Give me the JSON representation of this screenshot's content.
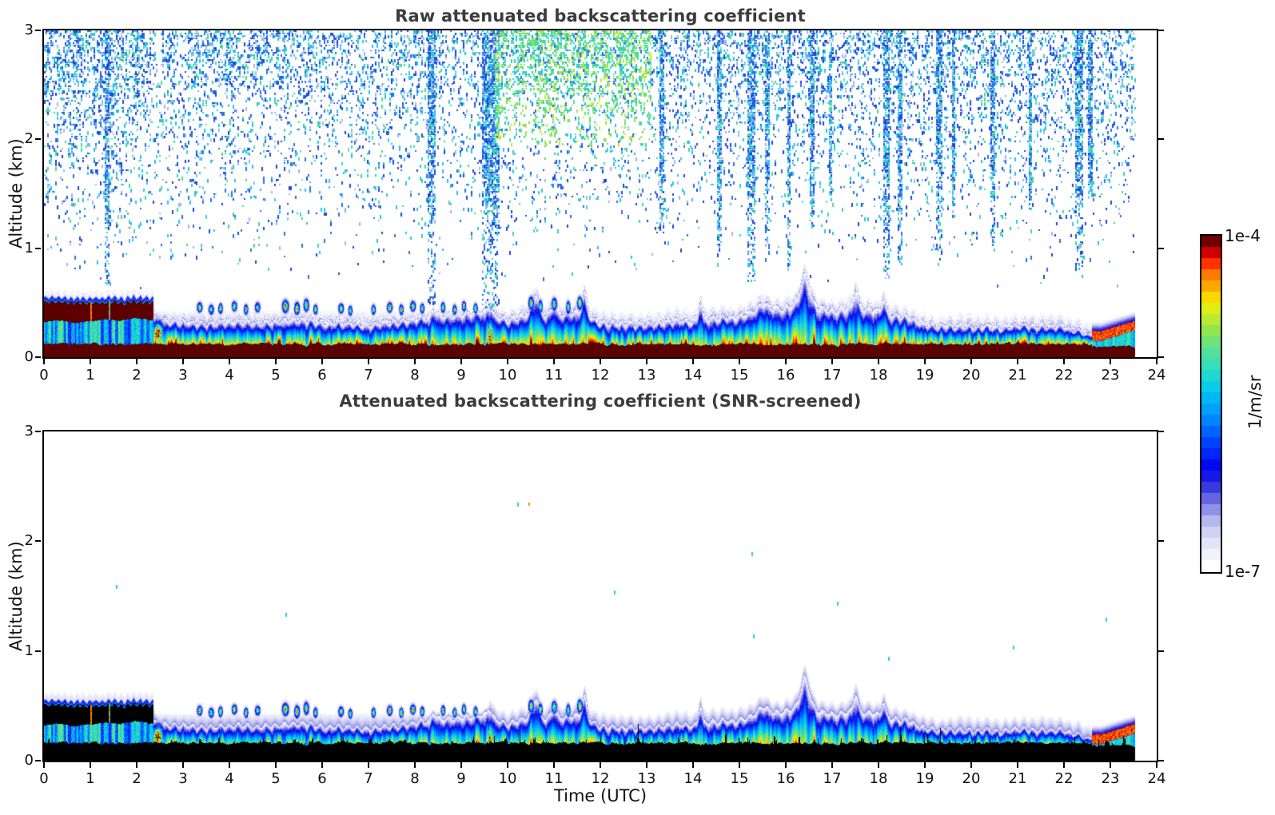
{
  "titles": {
    "panel1": "Raw attenuated backscattering coefficient",
    "panel2": "Attenuated backscattering coefficient (SNR-screened)"
  },
  "axes": {
    "ylabel": "Altitude (km)",
    "xlabel": "Time (UTC)",
    "xticks": [
      0,
      1,
      2,
      3,
      4,
      5,
      6,
      7,
      8,
      9,
      10,
      11,
      12,
      13,
      14,
      15,
      16,
      17,
      18,
      19,
      20,
      21,
      22,
      23,
      24
    ],
    "yticks": [
      0,
      1,
      2,
      3
    ],
    "xlim": [
      0,
      24
    ],
    "ylim": [
      0,
      3
    ]
  },
  "colorbar": {
    "max_label": "1e-4",
    "min_label": "1e-7",
    "unit": "1/m/sr",
    "steps": 30
  },
  "chart_data": {
    "type": "heatmap",
    "panels": [
      {
        "title": "Raw attenuated backscattering coefficient",
        "screened": false
      },
      {
        "title": "Attenuated backscattering coefficient (SNR-screened)",
        "screened": true
      }
    ],
    "x": {
      "label": "Time (UTC)",
      "min": 0,
      "max": 24,
      "data_end": 23.55
    },
    "y": {
      "label": "Altitude (km)",
      "min": 0,
      "max": 3
    },
    "value_scale": {
      "unit": "1/m/sr",
      "type": "log",
      "min_label": "1e-7",
      "max_label": "1e-4"
    },
    "seed": 11,
    "layer_top_km": {
      "t_step": 0.5,
      "values": [
        0.46,
        0.48,
        0.5,
        0.5,
        0.48,
        0.33,
        0.32,
        0.31,
        0.32,
        0.31,
        0.33,
        0.34,
        0.32,
        0.31,
        0.3,
        0.32,
        0.36,
        0.38,
        0.4,
        0.42,
        0.34,
        0.4,
        0.38,
        0.42,
        0.31,
        0.3,
        0.3,
        0.33,
        0.33,
        0.36,
        0.38,
        0.42,
        0.46,
        0.5,
        0.42,
        0.46,
        0.42,
        0.38,
        0.3,
        0.28,
        0.28,
        0.28,
        0.29,
        0.28,
        0.28,
        0.22,
        0.3,
        0.34
      ]
    },
    "cloud_deck": {
      "start": 0,
      "end": 2.35,
      "base_km": 0.34,
      "top_km": 0.5
    },
    "plumes": [
      [
        10.6,
        0.18,
        0.1
      ],
      [
        11.0,
        0.1,
        0.08
      ],
      [
        11.65,
        0.2,
        0.07
      ],
      [
        14.15,
        0.18,
        0.05
      ],
      [
        15.5,
        0.08,
        0.15
      ],
      [
        16.4,
        0.26,
        0.12
      ],
      [
        17.5,
        0.15,
        0.06
      ],
      [
        18.1,
        0.12,
        0.05
      ],
      [
        9.6,
        0.08,
        0.06
      ],
      [
        8.4,
        0.06,
        0.06
      ]
    ],
    "patches": [
      [
        2.45,
        0.22,
        0.12,
        0.1,
        1.0
      ],
      [
        9.62,
        0.18,
        0.08,
        0.16,
        0.95
      ],
      [
        3.35,
        0.46,
        0.05,
        0.04,
        0.8
      ],
      [
        3.6,
        0.44,
        0.05,
        0.04,
        0.7
      ],
      [
        3.8,
        0.45,
        0.04,
        0.04,
        0.85
      ],
      [
        4.1,
        0.47,
        0.05,
        0.04,
        0.75
      ],
      [
        4.35,
        0.44,
        0.04,
        0.04,
        0.8
      ],
      [
        4.6,
        0.46,
        0.05,
        0.04,
        0.7
      ],
      [
        5.2,
        0.47,
        0.06,
        0.05,
        0.9
      ],
      [
        5.45,
        0.45,
        0.05,
        0.05,
        0.85
      ],
      [
        5.65,
        0.48,
        0.05,
        0.05,
        0.8
      ],
      [
        5.85,
        0.44,
        0.04,
        0.04,
        0.75
      ],
      [
        6.4,
        0.45,
        0.05,
        0.04,
        0.8
      ],
      [
        6.6,
        0.43,
        0.04,
        0.04,
        0.7
      ],
      [
        7.1,
        0.44,
        0.04,
        0.04,
        0.75
      ],
      [
        7.45,
        0.46,
        0.05,
        0.04,
        0.85
      ],
      [
        7.7,
        0.44,
        0.04,
        0.04,
        0.8
      ],
      [
        7.95,
        0.47,
        0.05,
        0.04,
        0.85
      ],
      [
        8.15,
        0.45,
        0.04,
        0.04,
        0.75
      ],
      [
        8.6,
        0.46,
        0.04,
        0.04,
        0.8
      ],
      [
        8.85,
        0.44,
        0.04,
        0.04,
        0.7
      ],
      [
        9.05,
        0.47,
        0.04,
        0.04,
        0.8
      ],
      [
        9.3,
        0.45,
        0.04,
        0.04,
        0.75
      ],
      [
        10.5,
        0.5,
        0.05,
        0.05,
        0.85
      ],
      [
        10.7,
        0.47,
        0.04,
        0.05,
        0.75
      ],
      [
        11.0,
        0.49,
        0.05,
        0.05,
        0.8
      ],
      [
        11.3,
        0.46,
        0.04,
        0.05,
        0.75
      ],
      [
        11.55,
        0.5,
        0.05,
        0.05,
        0.85
      ]
    ],
    "noise_streaks": [
      [
        1.35,
        0.65,
        0.05
      ],
      [
        8.35,
        0.5,
        0.09
      ],
      [
        9.62,
        0.45,
        0.2
      ],
      [
        13.3,
        1.15,
        0.05
      ],
      [
        14.55,
        0.8,
        0.06
      ],
      [
        15.25,
        0.65,
        0.08
      ],
      [
        15.6,
        0.85,
        0.05
      ],
      [
        16.05,
        0.75,
        0.05
      ],
      [
        16.55,
        1.2,
        0.04
      ],
      [
        16.95,
        1.5,
        0.04
      ],
      [
        18.15,
        0.7,
        0.06
      ],
      [
        18.45,
        0.85,
        0.06
      ],
      [
        19.3,
        0.85,
        0.07
      ],
      [
        19.6,
        1.3,
        0.04
      ],
      [
        20.45,
        0.95,
        0.05
      ],
      [
        21.25,
        1.35,
        0.04
      ],
      [
        22.3,
        0.75,
        0.08
      ],
      [
        22.55,
        1.5,
        0.04
      ]
    ],
    "screened_specks": [
      [
        1.55,
        1.6
      ],
      [
        5.2,
        1.35
      ],
      [
        10.2,
        2.35
      ],
      [
        12.3,
        1.55
      ],
      [
        15.25,
        1.9
      ],
      [
        15.3,
        1.15
      ],
      [
        17.1,
        1.45
      ],
      [
        18.2,
        0.95
      ],
      [
        20.9,
        1.05
      ],
      [
        22.9,
        1.3
      ]
    ],
    "speck_orange": [
      10.45,
      2.35
    ],
    "noise": {
      "base_density": 0.3,
      "min_alt_km": 0.55,
      "early_hours_end": 2.3,
      "early_multiplier": 1.6,
      "green_zone": {
        "t0": 9.7,
        "t1": 13.1,
        "h_min": 1.95,
        "extra": 0.22
      },
      "zone2": {
        "t0": 3.0,
        "t1": 5.2,
        "h_min": 2.5,
        "extra": 0.08
      }
    },
    "end_segment": {
      "start": 22.6,
      "red_center0": 0.2,
      "red_center1": 0.3
    },
    "veil": {
      "flat_start": 2.4,
      "flat_end": 9.6,
      "flat_top": 0.43,
      "extra": 0.1
    },
    "colors": {
      "cmap_stops": [
        [
          0.0,
          "#ffffff"
        ],
        [
          0.04,
          "#f0f0fb"
        ],
        [
          0.08,
          "#e0e0f8"
        ],
        [
          0.13,
          "#c0c0f0"
        ],
        [
          0.18,
          "#8888e8"
        ],
        [
          0.24,
          "#3a3ae0"
        ],
        [
          0.3,
          "#0000ee"
        ],
        [
          0.38,
          "#0044ff"
        ],
        [
          0.46,
          "#0090ff"
        ],
        [
          0.54,
          "#00c8f0"
        ],
        [
          0.6,
          "#2adbc8"
        ],
        [
          0.66,
          "#55e09b"
        ],
        [
          0.72,
          "#8ce455"
        ],
        [
          0.77,
          "#c8ec28"
        ],
        [
          0.81,
          "#f2f200"
        ],
        [
          0.86,
          "#ffaa00"
        ],
        [
          0.9,
          "#ff7700"
        ],
        [
          0.93,
          "#ff3300"
        ],
        [
          0.96,
          "#dd0000"
        ],
        [
          1.0,
          "#700000"
        ]
      ],
      "over_raw": "#5c0000",
      "over_screened": "#000000",
      "noise_palette": [
        "#1b46dd",
        "#2d6fe8",
        "#27c4ea",
        "#3fd9a0",
        "#9db8f0",
        "#2d6fe8",
        "#27c4ea",
        "#1b46dd"
      ],
      "noise_palette_green": [
        "#3fd9a0",
        "#6ade5c",
        "#9ce44a",
        "#27c4ea",
        "#c8e83c",
        "#2d6fe8",
        "#55e09b",
        "#27c4ea"
      ],
      "speck_cyan": "#22ccee",
      "speck_orange_color": "#ff8800",
      "title_color": "#3c3c3c",
      "axis_color": "#000000"
    }
  }
}
